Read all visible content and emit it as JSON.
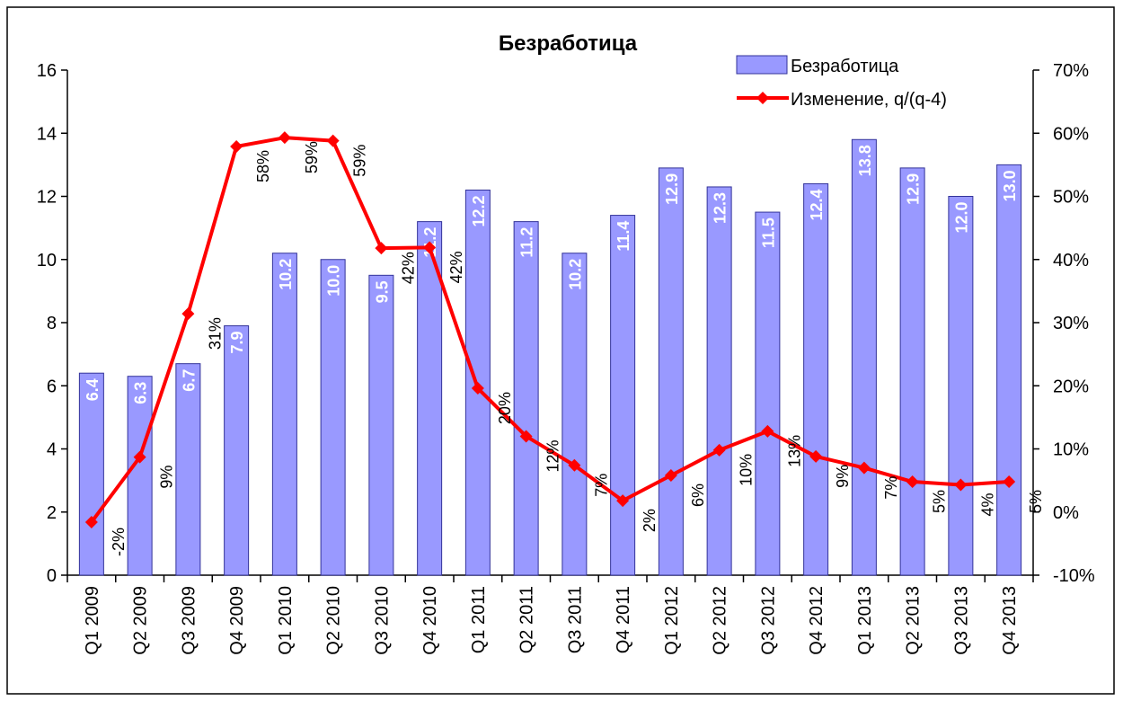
{
  "chart_data": {
    "type": "bar-line",
    "title": "Безработица",
    "categories": [
      "Q1 2009",
      "Q2 2009",
      "Q3 2009",
      "Q4 2009",
      "Q1 2010",
      "Q2 2010",
      "Q3 2010",
      "Q4 2010",
      "Q1 2011",
      "Q2 2011",
      "Q3 2011",
      "Q4 2011",
      "Q1 2012",
      "Q2 2012",
      "Q3 2012",
      "Q4 2012",
      "Q1 2013",
      "Q2 2013",
      "Q3 2013",
      "Q4 2013"
    ],
    "series": [
      {
        "name": "Безработица",
        "type": "bar",
        "color": "#9999ff",
        "values": [
          6.4,
          6.3,
          6.7,
          7.9,
          10.2,
          10.0,
          9.5,
          11.2,
          12.2,
          11.2,
          10.2,
          11.4,
          12.9,
          12.3,
          11.5,
          12.4,
          13.8,
          12.9,
          12.0,
          13.0
        ],
        "value_labels": [
          "6.4",
          "6.3",
          "6.7",
          "7.9",
          "10.2",
          "10.0",
          "9.5",
          "11.2",
          "12.2",
          "11.2",
          "10.2",
          "11.4",
          "12.9",
          "12.3",
          "11.5",
          "12.4",
          "13.8",
          "12.9",
          "12.0",
          "13.0"
        ]
      },
      {
        "name": "Изменение, q/(q-4)",
        "type": "line",
        "axis": "y2",
        "color": "#ff0000",
        "values": [
          -1.6,
          8.7,
          31.4,
          57.9,
          59.3,
          58.8,
          41.8,
          41.9,
          19.6,
          12.0,
          7.4,
          1.8,
          5.8,
          9.8,
          12.8,
          8.8,
          7.0,
          4.8,
          4.3,
          4.8
        ],
        "value_labels": [
          "-2%",
          "9%",
          "31%",
          "58%",
          "59%",
          "59%",
          "42%",
          "42%",
          "20%",
          "12%",
          "7%",
          "2%",
          "6%",
          "10%",
          "13%",
          "9%",
          "7%",
          "5%",
          "4%",
          "5%"
        ]
      }
    ],
    "ylim": [
      0,
      16
    ],
    "yticks": [
      0,
      2,
      4,
      6,
      8,
      10,
      12,
      14,
      16
    ],
    "y2lim": [
      -10,
      70
    ],
    "y2ticks": [
      {
        "value": -10,
        "label": "-10%"
      },
      {
        "value": 0,
        "label": "0%"
      },
      {
        "value": 10,
        "label": "10%"
      },
      {
        "value": 20,
        "label": "20%"
      },
      {
        "value": 30,
        "label": "30%"
      },
      {
        "value": 40,
        "label": "40%"
      },
      {
        "value": 50,
        "label": "50%"
      },
      {
        "value": 60,
        "label": "60%"
      },
      {
        "value": 70,
        "label": "70%"
      }
    ]
  }
}
